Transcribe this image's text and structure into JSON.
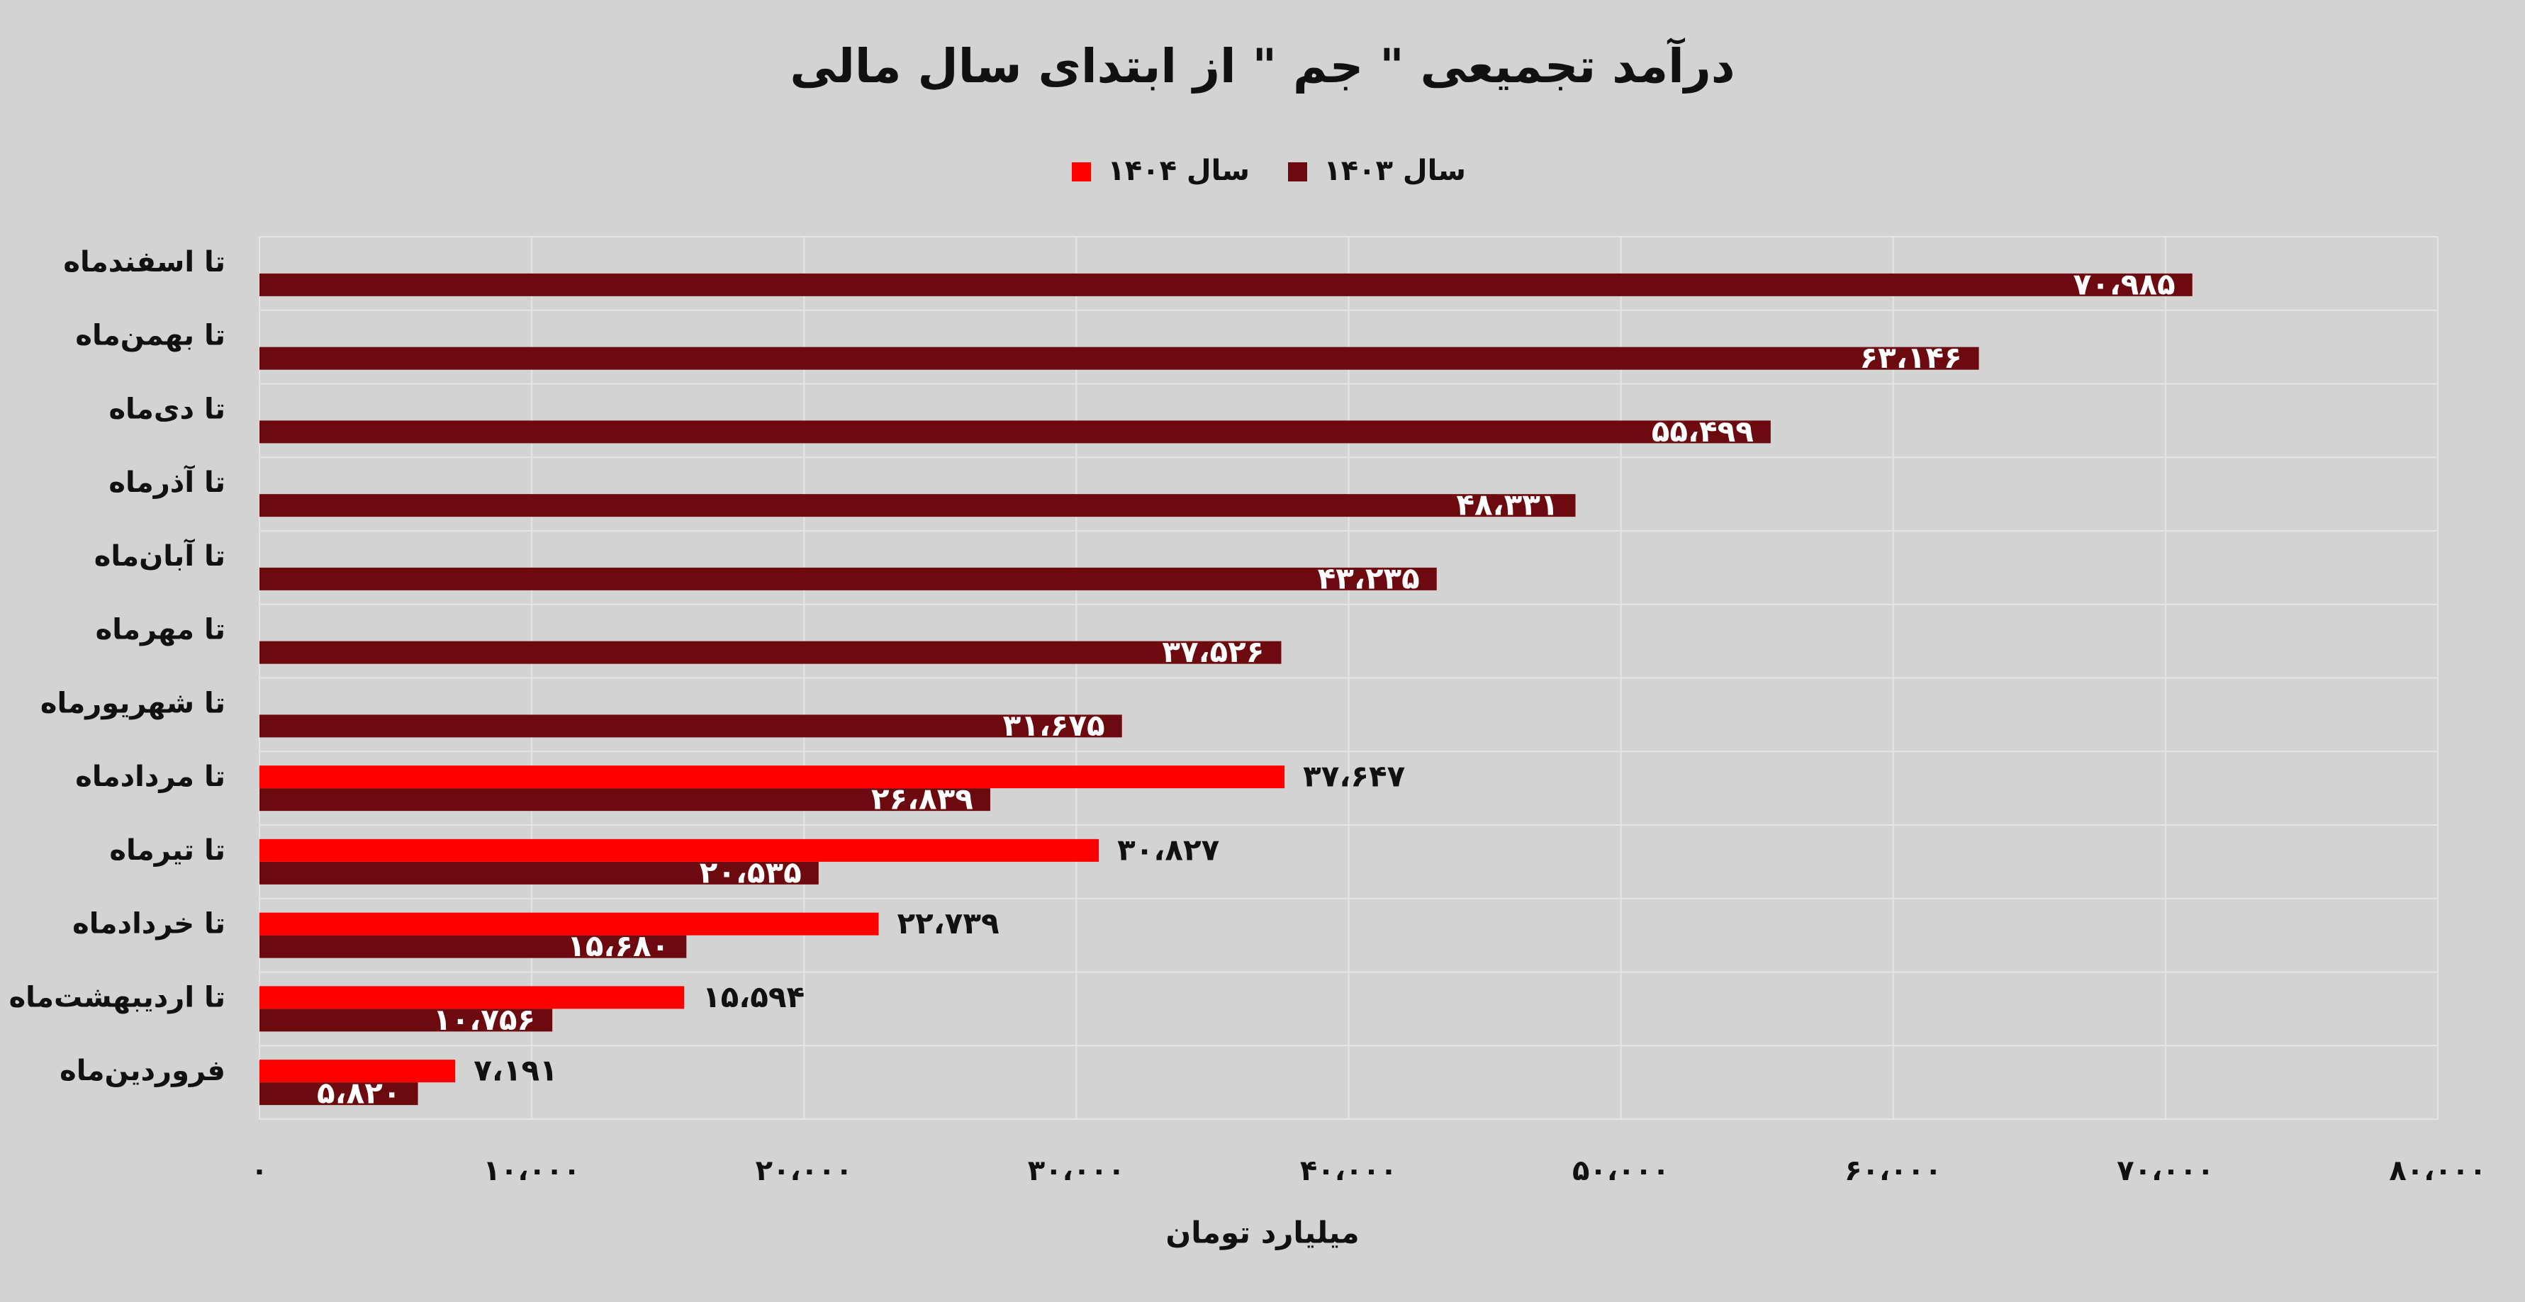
{
  "chart_data": {
    "type": "hbar",
    "title": "درآمد تجمیعی \" جم \" از ابتدای سال مالی",
    "x_label": "میلیارد تومان",
    "categories": [
      "تا اسفندماه",
      "تا بهمن‌ماه",
      "تا دی‌ماه",
      "تا آذرماه",
      "تا آبان‌ماه",
      "تا مهرماه",
      "تا شهریورماه",
      "تا مردادماه",
      "تا تیرماه",
      "تا خردادماه",
      "تا اردیبهشت‌ماه",
      "فروردین‌ماه"
    ],
    "series": [
      {
        "name": "سال ۱۴۰۳",
        "color": "#6d0a0f",
        "values": [
          70985,
          63146,
          55499,
          48331,
          43235,
          37526,
          31675,
          26839,
          20535,
          15680,
          10756,
          5820
        ],
        "value_labels": [
          "۷۰،۹۸۵",
          "۶۳،۱۴۶",
          "۵۵،۴۹۹",
          "۴۸،۳۳۱",
          "۴۳،۲۳۵",
          "۳۷،۵۲۶",
          "۳۱،۶۷۵",
          "۲۶،۸۳۹",
          "۲۰،۵۳۵",
          "۱۵،۶۸۰",
          "۱۰،۷۵۶",
          "۵،۸۲۰"
        ]
      },
      {
        "name": "سال ۱۴۰۴",
        "color": "#ff0000",
        "values": [
          null,
          null,
          null,
          null,
          null,
          null,
          null,
          37647,
          30827,
          22739,
          15594,
          7191
        ],
        "value_labels": [
          null,
          null,
          null,
          null,
          null,
          null,
          null,
          "۳۷،۶۴۷",
          "۳۰،۸۲۷",
          "۲۲،۷۳۹",
          "۱۵،۵۹۴",
          "۷،۱۹۱"
        ]
      }
    ],
    "xlim": [
      0,
      80000
    ],
    "xticks": [
      {
        "value": 0,
        "label": "۰"
      },
      {
        "value": 10000,
        "label": "۱۰،۰۰۰"
      },
      {
        "value": 20000,
        "label": "۲۰،۰۰۰"
      },
      {
        "value": 30000,
        "label": "۳۰،۰۰۰"
      },
      {
        "value": 40000,
        "label": "۴۰،۰۰۰"
      },
      {
        "value": 50000,
        "label": "۵۰،۰۰۰"
      },
      {
        "value": 60000,
        "label": "۶۰،۰۰۰"
      },
      {
        "value": 70000,
        "label": "۷۰،۰۰۰"
      },
      {
        "value": 80000,
        "label": "۸۰،۰۰۰"
      }
    ],
    "grid": true,
    "legend": "top"
  }
}
